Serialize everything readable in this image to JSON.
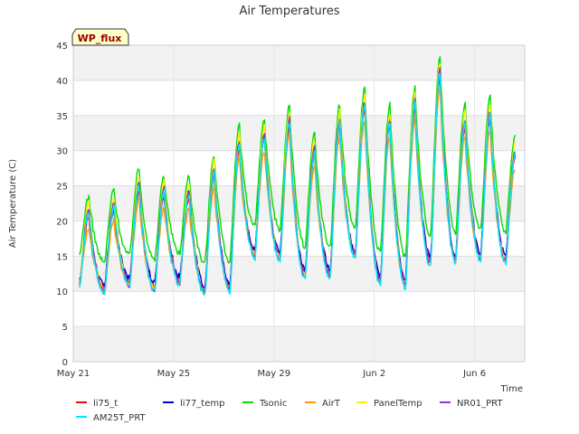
{
  "chart_data": {
    "type": "line",
    "title": "Air Temperatures",
    "xlabel": "Time",
    "ylabel": "Air Temperature (C)",
    "badge": "WP_flux",
    "ylim": [
      0,
      45
    ],
    "yticks": [
      0,
      5,
      10,
      15,
      20,
      25,
      30,
      35,
      40,
      45
    ],
    "xlim": [
      "2024-05-21",
      "2024-06-08"
    ],
    "xticks": [
      {
        "label": "May 21",
        "value": "2024-05-21"
      },
      {
        "label": "May 25",
        "value": "2024-05-25"
      },
      {
        "label": "May 29",
        "value": "2024-05-29"
      },
      {
        "label": "Jun 2",
        "value": "2024-06-02"
      },
      {
        "label": "Jun 6",
        "value": "2024-06-06"
      }
    ],
    "grid": true,
    "banded_background": true,
    "legend_position": "bottom",
    "daily_extremes": {
      "dates": [
        "2024-05-21",
        "2024-05-22",
        "2024-05-23",
        "2024-05-24",
        "2024-05-25",
        "2024-05-26",
        "2024-05-27",
        "2024-05-28",
        "2024-05-29",
        "2024-05-30",
        "2024-05-31",
        "2024-06-01",
        "2024-06-02",
        "2024-06-03",
        "2024-06-04",
        "2024-06-05",
        "2024-06-06",
        "2024-06-07"
      ],
      "reference_min": [
        10.3,
        9.6,
        10.6,
        9.9,
        10.9,
        9.5,
        9.8,
        14.8,
        14.3,
        11.8,
        11.9,
        14.6,
        10.9,
        10.5,
        13.6,
        14.0,
        14.3,
        13.9
      ],
      "reference_max": [
        21.0,
        22.0,
        25.0,
        24.0,
        24.0,
        27.0,
        31.0,
        32.0,
        34.0,
        30.0,
        34.0,
        36.5,
        34.0,
        36.5,
        41.0,
        34.0,
        35.0,
        29.5
      ]
    },
    "series": [
      {
        "name": "li75_t",
        "color": "#ff0000",
        "min_offset": 0.8,
        "max_offset": -0.5
      },
      {
        "name": "li77_temp",
        "color": "#0000cc",
        "min_offset": 1.2,
        "max_offset": 0.2
      },
      {
        "name": "Tsonic",
        "color": "#00dd00",
        "min_offset": 4.5,
        "max_offset": 2.5
      },
      {
        "name": "AirT",
        "color": "#ff9900",
        "min_offset": 0.5,
        "max_offset": -2.0
      },
      {
        "name": "PanelTemp",
        "color": "#ffee00",
        "min_offset": 0.3,
        "max_offset": 1.5
      },
      {
        "name": "NR01_PRT",
        "color": "#9933cc",
        "min_offset": 0.4,
        "max_offset": 0.5
      },
      {
        "name": "AM25T_PRT",
        "color": "#00e5ff",
        "min_offset": 0.0,
        "max_offset": 0.0
      }
    ]
  }
}
